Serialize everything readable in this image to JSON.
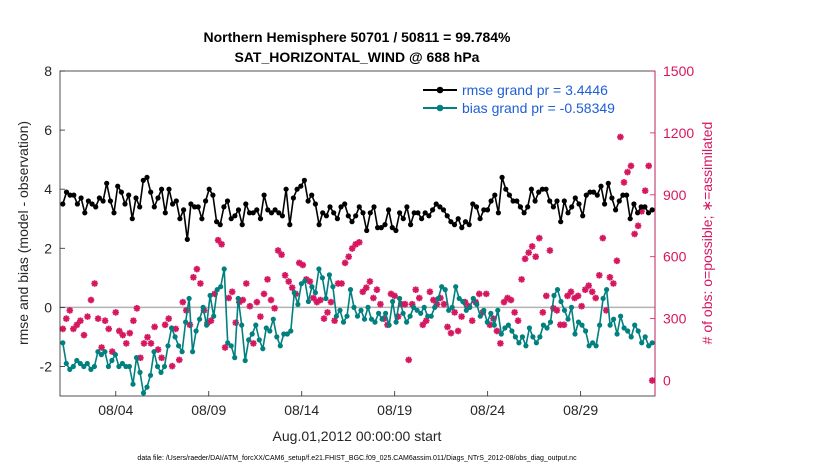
{
  "chart_data": {
    "type": "line",
    "title": "Northern Hemisphere 50701 / 50811 = 99.784%",
    "subtitle": "SAT_HORIZONTAL_WIND @ 688 hPa",
    "xlabel": "Aug.01,2012 00:00:00 start",
    "ylabel": "rmse and bias (model - observation)",
    "y2label": "# of obs: o=possible; ∗=assimilated",
    "footnote": "data file: /Users/raeder/DAI/ATM_forcXX/CAM6_setup/f.e21.FHIST_BGC.f09_025.CAM6assim.011/Diags_NTrS_2012-08/obs_diag_output.nc",
    "xlim": [
      1.0,
      33.0
    ],
    "ylim": [
      -3,
      8
    ],
    "y2lim": [
      -75,
      1500
    ],
    "x_ticks": [
      {
        "x": 4,
        "label": "08/04"
      },
      {
        "x": 9,
        "label": "08/09"
      },
      {
        "x": 14,
        "label": "08/14"
      },
      {
        "x": 19,
        "label": "08/19"
      },
      {
        "x": 24,
        "label": "08/24"
      },
      {
        "x": 29,
        "label": "08/29"
      }
    ],
    "y_ticks": [
      -2,
      0,
      2,
      4,
      6,
      8
    ],
    "y2_ticks": [
      0,
      300,
      600,
      900,
      1200,
      1500
    ],
    "zero_line": 0,
    "legend": {
      "position": "top-right"
    },
    "series": [
      {
        "name": "rmse grand pr = 3.4446",
        "color": "#000000",
        "axis": "left",
        "values": [
          3.5,
          3.9,
          3.8,
          3.8,
          3.5,
          3.7,
          3.2,
          3.6,
          3.5,
          3.4,
          3.7,
          3.6,
          4.2,
          3.6,
          3.2,
          4.1,
          3.9,
          3.5,
          3.8,
          3.0,
          3.7,
          3.4,
          4.3,
          4.4,
          3.9,
          3.4,
          3.7,
          4.0,
          3.2,
          4.0,
          3.5,
          3.6,
          3.0,
          3.3,
          2.3,
          3.5,
          3.4,
          3.4,
          3.0,
          3.6,
          4.0,
          3.8,
          2.9,
          2.8,
          3.4,
          3.6,
          3.0,
          3.1,
          3.3,
          2.8,
          3.5,
          3.2,
          3.2,
          3.3,
          3.0,
          3.8,
          3.3,
          3.2,
          3.3,
          3.2,
          3.1,
          4.0,
          2.8,
          3.7,
          4.0,
          4.1,
          4.3,
          3.6,
          3.8,
          3.5,
          2.8,
          3.2,
          3.1,
          3.4,
          3.2,
          3.0,
          3.4,
          3.5,
          3.1,
          2.9,
          3.1,
          3.4,
          3.2,
          2.6,
          3.2,
          3.4,
          2.7,
          2.7,
          2.8,
          3.3,
          2.7,
          2.6,
          3.2,
          3.0,
          3.4,
          2.8,
          3.2,
          3.2,
          3.0,
          3.2,
          3.1,
          3.3,
          3.5,
          3.4,
          3.3,
          3.1,
          2.9,
          2.8,
          3.0,
          2.7,
          2.9,
          2.8,
          3.5,
          3.4,
          3.0,
          3.3,
          3.3,
          3.6,
          3.8,
          3.2,
          4.4,
          4.0,
          3.8,
          3.6,
          3.6,
          3.4,
          3.2,
          3.4,
          4.0,
          3.6,
          3.9,
          4.0,
          4.0,
          3.6,
          3.4,
          3.6,
          2.9,
          3.6,
          3.2,
          3.4,
          3.7,
          3.5,
          3.1,
          3.8,
          3.9,
          3.9,
          3.8,
          4.1,
          3.5,
          4.2,
          3.7,
          3.3,
          3.6,
          3.8,
          3.8,
          3.0,
          3.5,
          3.2,
          3.4,
          3.4,
          3.2,
          3.3
        ]
      },
      {
        "name": "bias grand pr = -0.58349",
        "color": "#00807f",
        "axis": "left",
        "values": [
          -1.2,
          -1.9,
          -2.1,
          -2.0,
          -1.8,
          -1.9,
          -2.0,
          -1.9,
          -2.1,
          -2.0,
          -1.5,
          -1.6,
          -1.5,
          -2.0,
          -1.8,
          -1.6,
          -2.0,
          -1.9,
          -2.0,
          -2.0,
          -2.6,
          -1.7,
          -2.2,
          -2.9,
          -2.7,
          -2.3,
          -1.5,
          -2.0,
          -2.2,
          -2.0,
          -1.3,
          -0.7,
          -1.0,
          -1.3,
          -1.5,
          -0.5,
          0.3,
          -1.5,
          -0.8,
          -0.4,
          0.0,
          -0.6,
          0.4,
          -0.3,
          0.6,
          0.7,
          1.3,
          -1.2,
          -1.3,
          -1.7,
          0.3,
          -0.6,
          -1.8,
          -1.1,
          -0.9,
          -0.6,
          -1.1,
          -1.4,
          -0.7,
          -0.8,
          -0.4,
          -1.0,
          -1.3,
          -0.9,
          -0.9,
          -0.8,
          0.5,
          0.1,
          0.8,
          0.9,
          0.2,
          0.7,
          0.5,
          1.3,
          1.0,
          0.3,
          1.1,
          0.7,
          -0.3,
          -0.1,
          -0.5,
          -0.3,
          0.6,
          0.0,
          -0.3,
          -0.1,
          -0.4,
          0.0,
          -0.4,
          -0.5,
          -0.2,
          -0.4,
          -0.2,
          -0.6,
          0.2,
          -0.5,
          0.3,
          -0.2,
          -0.5,
          -0.3,
          0.0,
          -0.1,
          -0.2,
          0.0,
          -0.3,
          -0.3,
          0.0,
          0.3,
          0.7,
          0.6,
          -0.1,
          0.0,
          0.7,
          0.3,
          0.2,
          -0.1,
          0.0,
          0.3,
          0.1,
          -0.3,
          -0.1,
          -0.5,
          -0.2,
          -0.6,
          -0.1,
          -0.9,
          -0.7,
          -0.6,
          -0.8,
          -1.0,
          -1.2,
          -1.0,
          -1.3,
          -0.7,
          -1.0,
          -1.2,
          -1.0,
          -0.6,
          -0.7,
          -0.5,
          0.4,
          0.6,
          0.2,
          -0.1,
          -0.4,
          0.0,
          -0.9,
          -0.5,
          -0.6,
          -0.8,
          -1.3,
          -1.2,
          -1.3,
          -0.6,
          0.3,
          0.6,
          -0.6,
          -0.4,
          -0.9,
          -0.3,
          -0.7,
          -0.8,
          -1.0,
          -0.6,
          -0.8,
          -1.2,
          -1.0,
          -1.3,
          -1.2
        ]
      },
      {
        "name": "assimilated",
        "color": "#d6175f",
        "axis": "right",
        "values": [
          250,
          300,
          340,
          250,
          270,
          290,
          220,
          310,
          390,
          470,
          300,
          160,
          290,
          250,
          140,
          330,
          240,
          220,
          180,
          230,
          290,
          350,
          110,
          180,
          210,
          180,
          260,
          150,
          110,
          270,
          300,
          70,
          250,
          100,
          380,
          340,
          270,
          500,
          540,
          470,
          340,
          280,
          290,
          420,
          680,
          660,
          160,
          400,
          430,
          280,
          380,
          390,
          470,
          360,
          180,
          380,
          310,
          420,
          490,
          390,
          350,
          630,
          610,
          510,
          480,
          450,
          420,
          570,
          560,
          490,
          480,
          400,
          380,
          390,
          300,
          330,
          380,
          290,
          470,
          470,
          570,
          600,
          640,
          660,
          670,
          430,
          450,
          480,
          400,
          440,
          370,
          300,
          270,
          420,
          410,
          310,
          370,
          370,
          100,
          370,
          440,
          400,
          270,
          290,
          430,
          390,
          370,
          400,
          370,
          260,
          230,
          330,
          240,
          310,
          380,
          360,
          290,
          380,
          420,
          330,
          420,
          270,
          300,
          240,
          180,
          380,
          400,
          390,
          330,
          290,
          490,
          590,
          620,
          650,
          600,
          690,
          330,
          410,
          630,
          350,
          340,
          270,
          270,
          410,
          430,
          400,
          410,
          360,
          440,
          460,
          430,
          400,
          510,
          690,
          340,
          500,
          470,
          580,
          1180,
          960,
          1010,
          1040,
          710,
          750,
          820,
          920,
          1040,
          0
        ]
      }
    ]
  }
}
